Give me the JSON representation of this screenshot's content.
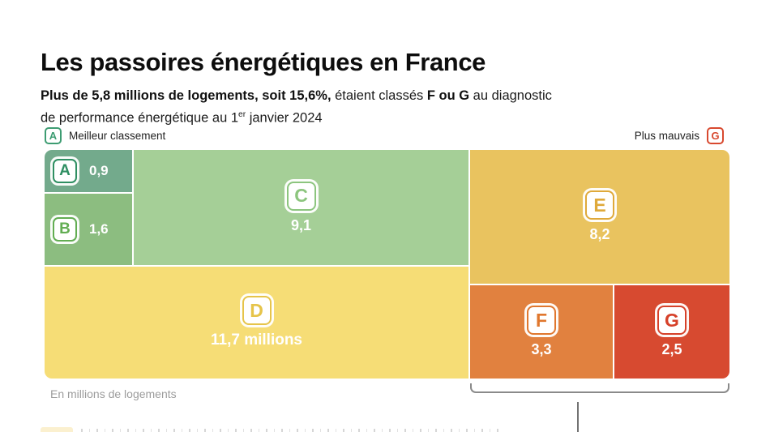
{
  "title": "Les passoires énergétiques en France",
  "subtitle": {
    "bold1": "Plus de 5,8 millions de logements, soit 15,6%,",
    "regular1": " étaient classés ",
    "bold2": "F ou G",
    "regular2a": " au diagnostic",
    "regular2b": "de performance énergétique au 1",
    "superscript": "er",
    "regular3": " janvier 2024"
  },
  "legend": {
    "best": {
      "badge": "A",
      "label": "Meilleur classement"
    },
    "worst": {
      "badge": "G",
      "label": "Plus mauvais"
    }
  },
  "footnote": "En millions de logements",
  "blocks": [
    {
      "label": "A",
      "value": "0,9"
    },
    {
      "label": "B",
      "value": "1,6"
    },
    {
      "label": "C",
      "value": "9,1"
    },
    {
      "label": "D",
      "value": "11,7 millions"
    },
    {
      "label": "E",
      "value": "8,2"
    },
    {
      "label": "F",
      "value": "3,3"
    },
    {
      "label": "G",
      "value": "2,5"
    }
  ],
  "colors": {
    "bg_a": "#73aa8c",
    "bg_b": "#8cbd80",
    "bg_c": "#a5cf97",
    "bg_d": "#f6dd76",
    "bg_e": "#e9c35f",
    "bg_f": "#e1813f",
    "bg_g": "#d74a30",
    "letter_a": "#2f8f62",
    "letter_b": "#62ad52",
    "letter_c": "#8cc57e",
    "letter_d": "#e6c44a",
    "letter_e": "#dfa93a",
    "letter_f": "#e0772e",
    "letter_g": "#d6412a",
    "legend_best": "#3d9c72",
    "legend_worst": "#d8492f",
    "bracket": "#8a8a8a"
  },
  "chart_data": {
    "type": "treemap",
    "title": "Les passoires énergétiques en France",
    "subtitle": "Plus de 5,8 millions de logements, soit 15,6%, étaient classés F ou G au diagnostic de performance énergétique au 1er janvier 2024",
    "unit": "En millions de logements",
    "categories": [
      "A",
      "B",
      "C",
      "D",
      "E",
      "F",
      "G"
    ],
    "values": [
      0.9,
      1.6,
      9.1,
      11.7,
      8.2,
      3.3,
      2.5
    ],
    "value_labels": [
      "0,9",
      "1,6",
      "9,1",
      "11,7 millions",
      "8,2",
      "3,3",
      "2,5"
    ],
    "colors": [
      "#73aa8c",
      "#8cbd80",
      "#a5cf97",
      "#f6dd76",
      "#e9c35f",
      "#e1813f",
      "#d74a30"
    ],
    "highlighted_group": [
      "F",
      "G"
    ],
    "legend": {
      "best": "A Meilleur classement",
      "worst": "Plus mauvais G"
    }
  }
}
